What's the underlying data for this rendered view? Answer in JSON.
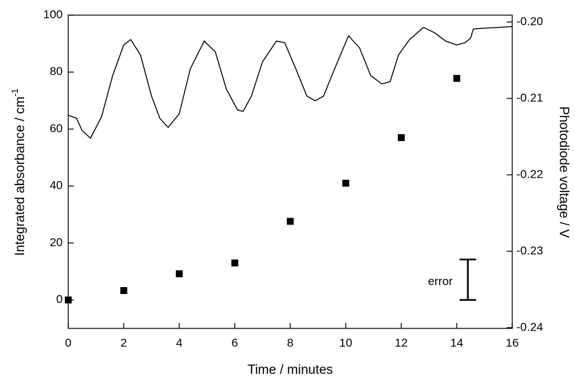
{
  "chart_data": {
    "type": "scatter",
    "x_label": "Time / minutes",
    "y_label": "Integrated absorbance / cm",
    "y_label_sup": "-1",
    "y2_label": "Photodiode voltage / V",
    "xlim": [
      0,
      16
    ],
    "xticks": [
      0,
      2,
      4,
      6,
      8,
      10,
      12,
      14,
      16
    ],
    "ylim": [
      -10,
      100
    ],
    "yticks": [
      0,
      20,
      40,
      60,
      80,
      100
    ],
    "y2lim": [
      -0.2401,
      -0.1991
    ],
    "y2ticks": [
      {
        "value": -0.2,
        "label": "-0.20"
      },
      -0.21,
      -0.22,
      -0.23,
      -0.24
    ],
    "series": [
      {
        "name": "Integrated absorbance",
        "type": "scatter",
        "color": "#000000",
        "x": [
          0,
          2,
          4,
          6,
          8,
          10,
          12,
          14
        ],
        "values": [
          0,
          3.3,
          9.2,
          13,
          27.6,
          41,
          57,
          77.8
        ]
      },
      {
        "name": "Photodiode voltage",
        "type": "line",
        "axis": "y2",
        "color": "#000000",
        "x": [
          0,
          0.3,
          0.5,
          0.8,
          1.2,
          1.6,
          2.0,
          2.25,
          2.6,
          3.0,
          3.3,
          3.6,
          4.0,
          4.4,
          4.9,
          5.3,
          5.7,
          6.1,
          6.3,
          6.6,
          7.0,
          7.5,
          7.8,
          8.2,
          8.6,
          8.9,
          9.2,
          9.6,
          10.1,
          10.5,
          10.9,
          11.3,
          11.6,
          11.9,
          12.3,
          12.8,
          13.2,
          13.6,
          14.0,
          14.3,
          14.5,
          14.6,
          15.0,
          15.5,
          16
        ],
        "values": [
          -0.2122,
          -0.2126,
          -0.2142,
          -0.2152,
          -0.2124,
          -0.207,
          -0.203,
          -0.2023,
          -0.2043,
          -0.2097,
          -0.2126,
          -0.2138,
          -0.212,
          -0.2061,
          -0.2025,
          -0.2039,
          -0.2088,
          -0.2115,
          -0.2117,
          -0.2097,
          -0.2052,
          -0.2025,
          -0.2027,
          -0.2061,
          -0.2097,
          -0.2103,
          -0.2097,
          -0.2061,
          -0.2018,
          -0.2034,
          -0.207,
          -0.2081,
          -0.2078,
          -0.2043,
          -0.2023,
          -0.2007,
          -0.2014,
          -0.2025,
          -0.203,
          -0.2027,
          -0.2021,
          -0.2009,
          -0.2008,
          -0.2007,
          -0.2006
        ]
      }
    ],
    "error_bar": {
      "label": "error",
      "x": 14.4,
      "y": 0,
      "error": 14.2
    }
  }
}
